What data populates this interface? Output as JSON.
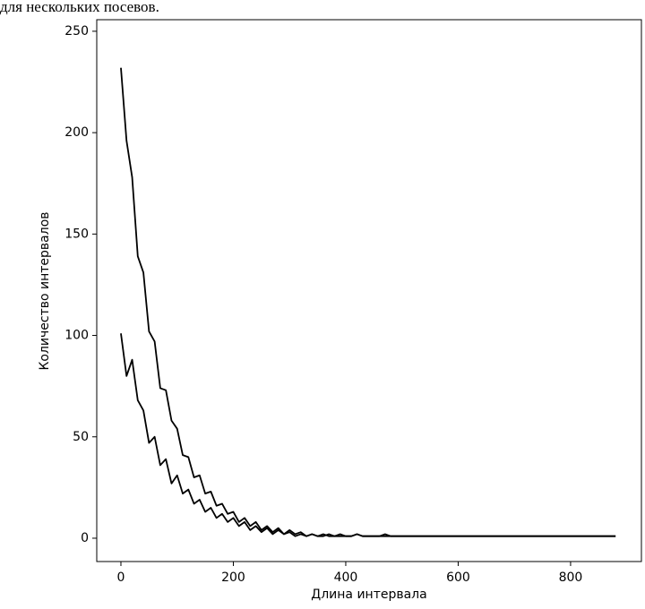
{
  "chart_data": {
    "type": "line",
    "title": "для нескольких посевов.",
    "x_label": "Длина интервала",
    "y_label": "Количество интервалов",
    "x": [
      0,
      10,
      20,
      30,
      40,
      50,
      60,
      70,
      80,
      90,
      100,
      110,
      120,
      130,
      140,
      150,
      160,
      170,
      180,
      190,
      200,
      210,
      220,
      230,
      240,
      250,
      260,
      270,
      280,
      290,
      300,
      310,
      320,
      330,
      340,
      350,
      360,
      370,
      380,
      390,
      400,
      410,
      420,
      430,
      440,
      450,
      460,
      470,
      480,
      490,
      500,
      510,
      520,
      530,
      540,
      550,
      560,
      570,
      580,
      590,
      600,
      610,
      620,
      630,
      640,
      650,
      660,
      670,
      680,
      690,
      700,
      710,
      720,
      730,
      740,
      750,
      760,
      770,
      780,
      790,
      800,
      810,
      820,
      830,
      840,
      850,
      860,
      870,
      880
    ],
    "series": [
      {
        "color": "#000000",
        "values": [
          232,
          196,
          178,
          139,
          131,
          102,
          97,
          74,
          73,
          58,
          54,
          41,
          40,
          30,
          31,
          22,
          23,
          16,
          17,
          12,
          13,
          8,
          10,
          6,
          8,
          4,
          6,
          3,
          5,
          2,
          4,
          2,
          3,
          1,
          2,
          1,
          2,
          1,
          1,
          2,
          1,
          1,
          2,
          1,
          1,
          1,
          1,
          2,
          1,
          1,
          1,
          1,
          1,
          1,
          1,
          1,
          1,
          1,
          1,
          1,
          1,
          1,
          1,
          1,
          1,
          1,
          1,
          1,
          1,
          1,
          1,
          1,
          1,
          1,
          1,
          1,
          1,
          1,
          1,
          1,
          1,
          1,
          1,
          1,
          1,
          1,
          1,
          1,
          1
        ]
      },
      {
        "color": "#000000",
        "values": [
          101,
          80,
          88,
          68,
          63,
          47,
          50,
          36,
          39,
          27,
          31,
          22,
          24,
          17,
          19,
          13,
          15,
          10,
          12,
          8,
          10,
          6,
          8,
          4,
          6,
          3,
          5,
          2,
          4,
          2,
          3,
          1,
          2,
          1,
          2,
          1,
          1,
          2,
          1,
          1,
          1,
          1,
          2,
          1,
          1,
          1,
          1,
          1,
          1,
          1,
          1,
          1,
          1,
          1,
          1,
          1,
          1,
          1,
          1,
          1,
          1,
          1,
          1,
          1,
          1,
          1,
          1,
          1,
          1,
          1,
          1,
          1,
          1,
          1,
          1,
          1,
          1,
          1,
          1,
          1,
          1,
          1,
          1,
          1,
          1,
          1,
          1,
          1,
          1
        ]
      }
    ],
    "xlim": [
      -43,
      926
    ],
    "ylim": [
      -11.5,
      255.7
    ],
    "xticks": [
      0,
      200,
      400,
      600,
      800
    ],
    "yticks": [
      0,
      50,
      100,
      150,
      200,
      250
    ]
  }
}
